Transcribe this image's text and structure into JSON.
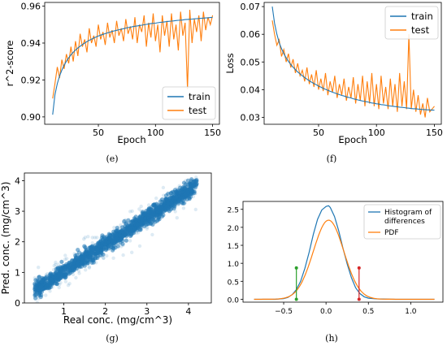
{
  "colors": {
    "blue": "#1f77b4",
    "orange": "#ff7f0e",
    "green": "#2ca02c",
    "red": "#d62728"
  },
  "captions": [
    "(e)",
    "(f)",
    "(g)",
    "(h)"
  ],
  "chart_data": [
    {
      "id": "e",
      "type": "line",
      "xlabel": "Epoch",
      "ylabel": "r^2-score",
      "xlim": [
        3,
        156
      ],
      "ylim": [
        0.896,
        0.962
      ],
      "xticks": [
        50,
        100,
        150
      ],
      "yticks": [
        0.9,
        0.92,
        0.94,
        0.96
      ],
      "ytick_labels": [
        "0.90",
        "0.92",
        "0.94",
        "0.96"
      ],
      "legend_position": "lower-right",
      "series": [
        {
          "name": "train",
          "color": "#1f77b4",
          "x_start": 10,
          "x_end": 150,
          "values": [
            0.9012,
            0.912,
            0.918,
            0.9222,
            0.9253,
            0.928,
            0.9302,
            0.932,
            0.9336,
            0.935,
            0.9362,
            0.9373,
            0.9383,
            0.9392,
            0.94,
            0.9408,
            0.9415,
            0.9421,
            0.9427,
            0.9433,
            0.9438,
            0.9443,
            0.9447,
            0.9451,
            0.9455,
            0.9459,
            0.9463,
            0.9466,
            0.9469,
            0.9472,
            0.9475,
            0.9478,
            0.9481,
            0.9484,
            0.9486,
            0.9489,
            0.9491,
            0.9493,
            0.9495,
            0.9497,
            0.9499,
            0.9501,
            0.9503,
            0.9505,
            0.9507,
            0.9508,
            0.951,
            0.9512,
            0.9513,
            0.9515,
            0.9516,
            0.9518,
            0.9519,
            0.952,
            0.9522,
            0.9523,
            0.9524,
            0.9525,
            0.9527,
            0.9528,
            0.9529,
            0.953,
            0.9531,
            0.9532,
            0.9533,
            0.9534,
            0.9535,
            0.9536,
            0.9537,
            0.9538,
            0.9539
          ]
        },
        {
          "name": "test",
          "color": "#ff7f0e",
          "x_start": 10,
          "x_end": 150,
          "values": [
            0.91,
            0.918,
            0.927,
            0.921,
            0.931,
            0.926,
            0.934,
            0.929,
            0.938,
            0.93,
            0.941,
            0.933,
            0.945,
            0.938,
            0.942,
            0.935,
            0.948,
            0.94,
            0.944,
            0.938,
            0.95,
            0.942,
            0.946,
            0.939,
            0.951,
            0.943,
            0.947,
            0.94,
            0.952,
            0.944,
            0.948,
            0.941,
            0.953,
            0.945,
            0.949,
            0.942,
            0.954,
            0.94,
            0.95,
            0.946,
            0.955,
            0.938,
            0.951,
            0.943,
            0.956,
            0.941,
            0.95,
            0.935,
            0.955,
            0.944,
            0.952,
            0.938,
            0.956,
            0.942,
            0.95,
            0.936,
            0.957,
            0.944,
            0.951,
            0.915,
            0.958,
            0.94,
            0.953,
            0.946,
            0.955,
            0.941,
            0.957,
            0.947,
            0.954,
            0.95,
            0.955
          ]
        }
      ]
    },
    {
      "id": "f",
      "type": "line",
      "xlabel": "Epoch",
      "ylabel": "Loss",
      "xlim": [
        3,
        156
      ],
      "ylim": [
        0.0275,
        0.0715
      ],
      "xticks": [
        50,
        100,
        150
      ],
      "yticks": [
        0.03,
        0.04,
        0.05,
        0.06,
        0.07
      ],
      "ytick_labels": [
        "0.03",
        "0.04",
        "0.05",
        "0.06",
        "0.07"
      ],
      "legend_position": "upper-right",
      "series": [
        {
          "name": "train",
          "color": "#1f77b4",
          "x_start": 10,
          "x_end": 150,
          "values": [
            0.07,
            0.064,
            0.06,
            0.057,
            0.0548,
            0.053,
            0.0515,
            0.0502,
            0.0491,
            0.0481,
            0.0472,
            0.0464,
            0.0457,
            0.045,
            0.0444,
            0.0438,
            0.0432,
            0.0427,
            0.0422,
            0.0418,
            0.0413,
            0.0409,
            0.0405,
            0.0401,
            0.0398,
            0.0394,
            0.0391,
            0.0388,
            0.0385,
            0.0382,
            0.0379,
            0.0377,
            0.0374,
            0.0372,
            0.037,
            0.0367,
            0.0365,
            0.0363,
            0.0361,
            0.0359,
            0.0357,
            0.0356,
            0.0354,
            0.0352,
            0.0351,
            0.0349,
            0.0348,
            0.0346,
            0.0345,
            0.0344,
            0.0342,
            0.0341,
            0.034,
            0.0339,
            0.0338,
            0.0337,
            0.0336,
            0.0335,
            0.0334,
            0.0333,
            0.0332,
            0.0331,
            0.0331,
            0.033,
            0.0329,
            0.0328,
            0.0328,
            0.0327,
            0.0327,
            0.0326,
            0.0326
          ]
        },
        {
          "name": "test",
          "color": "#ff7f0e",
          "x_start": 10,
          "x_end": 150,
          "values": [
            0.065,
            0.06,
            0.056,
            0.058,
            0.052,
            0.0545,
            0.05,
            0.053,
            0.048,
            0.051,
            0.046,
            0.0495,
            0.045,
            0.047,
            0.043,
            0.048,
            0.042,
            0.0455,
            0.041,
            0.047,
            0.04,
            0.044,
            0.0395,
            0.046,
            0.038,
            0.043,
            0.039,
            0.045,
            0.037,
            0.042,
            0.038,
            0.044,
            0.036,
            0.041,
            0.037,
            0.0445,
            0.035,
            0.042,
            0.036,
            0.045,
            0.034,
            0.043,
            0.035,
            0.046,
            0.034,
            0.042,
            0.033,
            0.045,
            0.035,
            0.041,
            0.033,
            0.044,
            0.034,
            0.042,
            0.032,
            0.046,
            0.034,
            0.043,
            0.033,
            0.06,
            0.033,
            0.04,
            0.032,
            0.038,
            0.031,
            0.035,
            0.03,
            0.037,
            0.032,
            0.033,
            0.034
          ]
        }
      ]
    },
    {
      "id": "g",
      "type": "scatter",
      "xlabel": "Real conc. (mg/cm^3)",
      "ylabel": "Pred. conc. (mg/cm^3)",
      "xlim": [
        0.05,
        4.55
      ],
      "ylim": [
        0.0,
        4.25
      ],
      "xticks": [
        1,
        2,
        3,
        4
      ],
      "yticks": [
        0,
        1,
        2,
        3,
        4
      ],
      "color": "#1f77b4",
      "trend": {
        "x_start": 0.3,
        "x_end": 4.2,
        "y_start": 0.42,
        "y_end": 3.85,
        "spread": 0.35
      }
    },
    {
      "id": "h",
      "type": "line",
      "xlim": [
        -0.98,
        1.38
      ],
      "ylim": [
        -0.08,
        2.72
      ],
      "xticks": [
        -0.5,
        0.0,
        0.5,
        1.0
      ],
      "xtick_labels": [
        "−0.5",
        "0.0",
        "0.5",
        "1.0"
      ],
      "yticks": [
        0.0,
        0.5,
        1.0,
        1.5,
        2.0,
        2.5
      ],
      "ytick_labels": [
        "0.0",
        "0.5",
        "1.0",
        "1.5",
        "2.0",
        "2.5"
      ],
      "legend_position": "upper-right",
      "series": [
        {
          "name": "Histogram of differences",
          "name_lines": [
            "Histogram of",
            "differences"
          ],
          "color": "#1f77b4",
          "x": [
            -0.85,
            -0.6,
            -0.5,
            -0.45,
            -0.4,
            -0.35,
            -0.3,
            -0.25,
            -0.2,
            -0.15,
            -0.1,
            -0.05,
            0.0,
            0.03,
            0.05,
            0.1,
            0.15,
            0.2,
            0.25,
            0.3,
            0.35,
            0.4,
            0.45,
            0.5,
            0.6,
            0.8,
            1.0,
            1.28
          ],
          "y": [
            0.0,
            0.0,
            0.02,
            0.05,
            0.13,
            0.27,
            0.5,
            0.86,
            1.3,
            1.8,
            2.22,
            2.48,
            2.58,
            2.6,
            2.55,
            2.3,
            1.9,
            1.42,
            0.98,
            0.6,
            0.32,
            0.16,
            0.07,
            0.03,
            0.01,
            0.0,
            0.0,
            0.0
          ]
        },
        {
          "name": "PDF",
          "color": "#ff7f0e",
          "mean": 0.03,
          "std": 0.18,
          "peak": 2.2,
          "x_range": [
            -0.85,
            1.28
          ]
        }
      ],
      "markers": [
        {
          "color": "#2ca02c",
          "x": -0.35,
          "y_bottom": 0.0,
          "y_top": 0.87
        },
        {
          "color": "#d62728",
          "x": 0.39,
          "y_bottom": 0.0,
          "y_top": 0.87
        }
      ]
    }
  ]
}
